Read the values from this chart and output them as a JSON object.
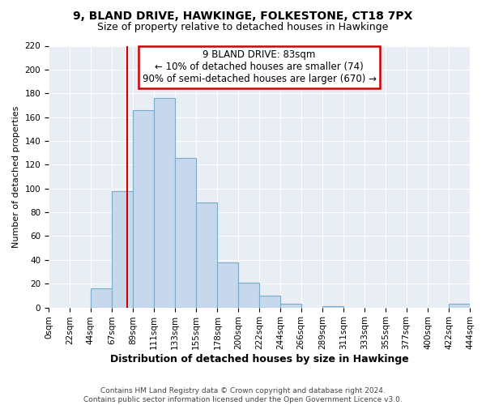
{
  "title": "9, BLAND DRIVE, HAWKINGE, FOLKESTONE, CT18 7PX",
  "subtitle": "Size of property relative to detached houses in Hawkinge",
  "xlabel": "Distribution of detached houses by size in Hawkinge",
  "ylabel": "Number of detached properties",
  "bar_color": "#c8d8ec",
  "bar_edge_color": "#7aaac8",
  "bin_edges": [
    0,
    22,
    44,
    67,
    89,
    111,
    133,
    155,
    178,
    200,
    222,
    244,
    266,
    289,
    311,
    333,
    355,
    377,
    400,
    422,
    444
  ],
  "bar_heights": [
    0,
    0,
    16,
    98,
    166,
    176,
    126,
    88,
    38,
    21,
    10,
    3,
    0,
    1,
    0,
    0,
    0,
    0,
    0,
    3
  ],
  "tick_labels": [
    "0sqm",
    "22sqm",
    "44sqm",
    "67sqm",
    "89sqm",
    "111sqm",
    "133sqm",
    "155sqm",
    "178sqm",
    "200sqm",
    "222sqm",
    "244sqm",
    "266sqm",
    "289sqm",
    "311sqm",
    "333sqm",
    "355sqm",
    "377sqm",
    "400sqm",
    "422sqm",
    "444sqm"
  ],
  "ylim": [
    0,
    220
  ],
  "yticks": [
    0,
    20,
    40,
    60,
    80,
    100,
    120,
    140,
    160,
    180,
    200,
    220
  ],
  "property_size": 83,
  "vline_color": "#cc0000",
  "annotation_box_edge": "#cc0000",
  "annotation_title": "9 BLAND DRIVE: 83sqm",
  "annotation_line1": "← 10% of detached houses are smaller (74)",
  "annotation_line2": "90% of semi-detached houses are larger (670) →",
  "footer_line1": "Contains HM Land Registry data © Crown copyright and database right 2024.",
  "footer_line2": "Contains public sector information licensed under the Open Government Licence v3.0.",
  "background_color": "#ffffff",
  "plot_bg_color": "#e8eef4",
  "grid_color": "#ffffff",
  "title_fontsize": 10,
  "subtitle_fontsize": 9,
  "xlabel_fontsize": 9,
  "ylabel_fontsize": 8,
  "tick_fontsize": 7.5,
  "annotation_fontsize": 8.5,
  "footer_fontsize": 6.5
}
